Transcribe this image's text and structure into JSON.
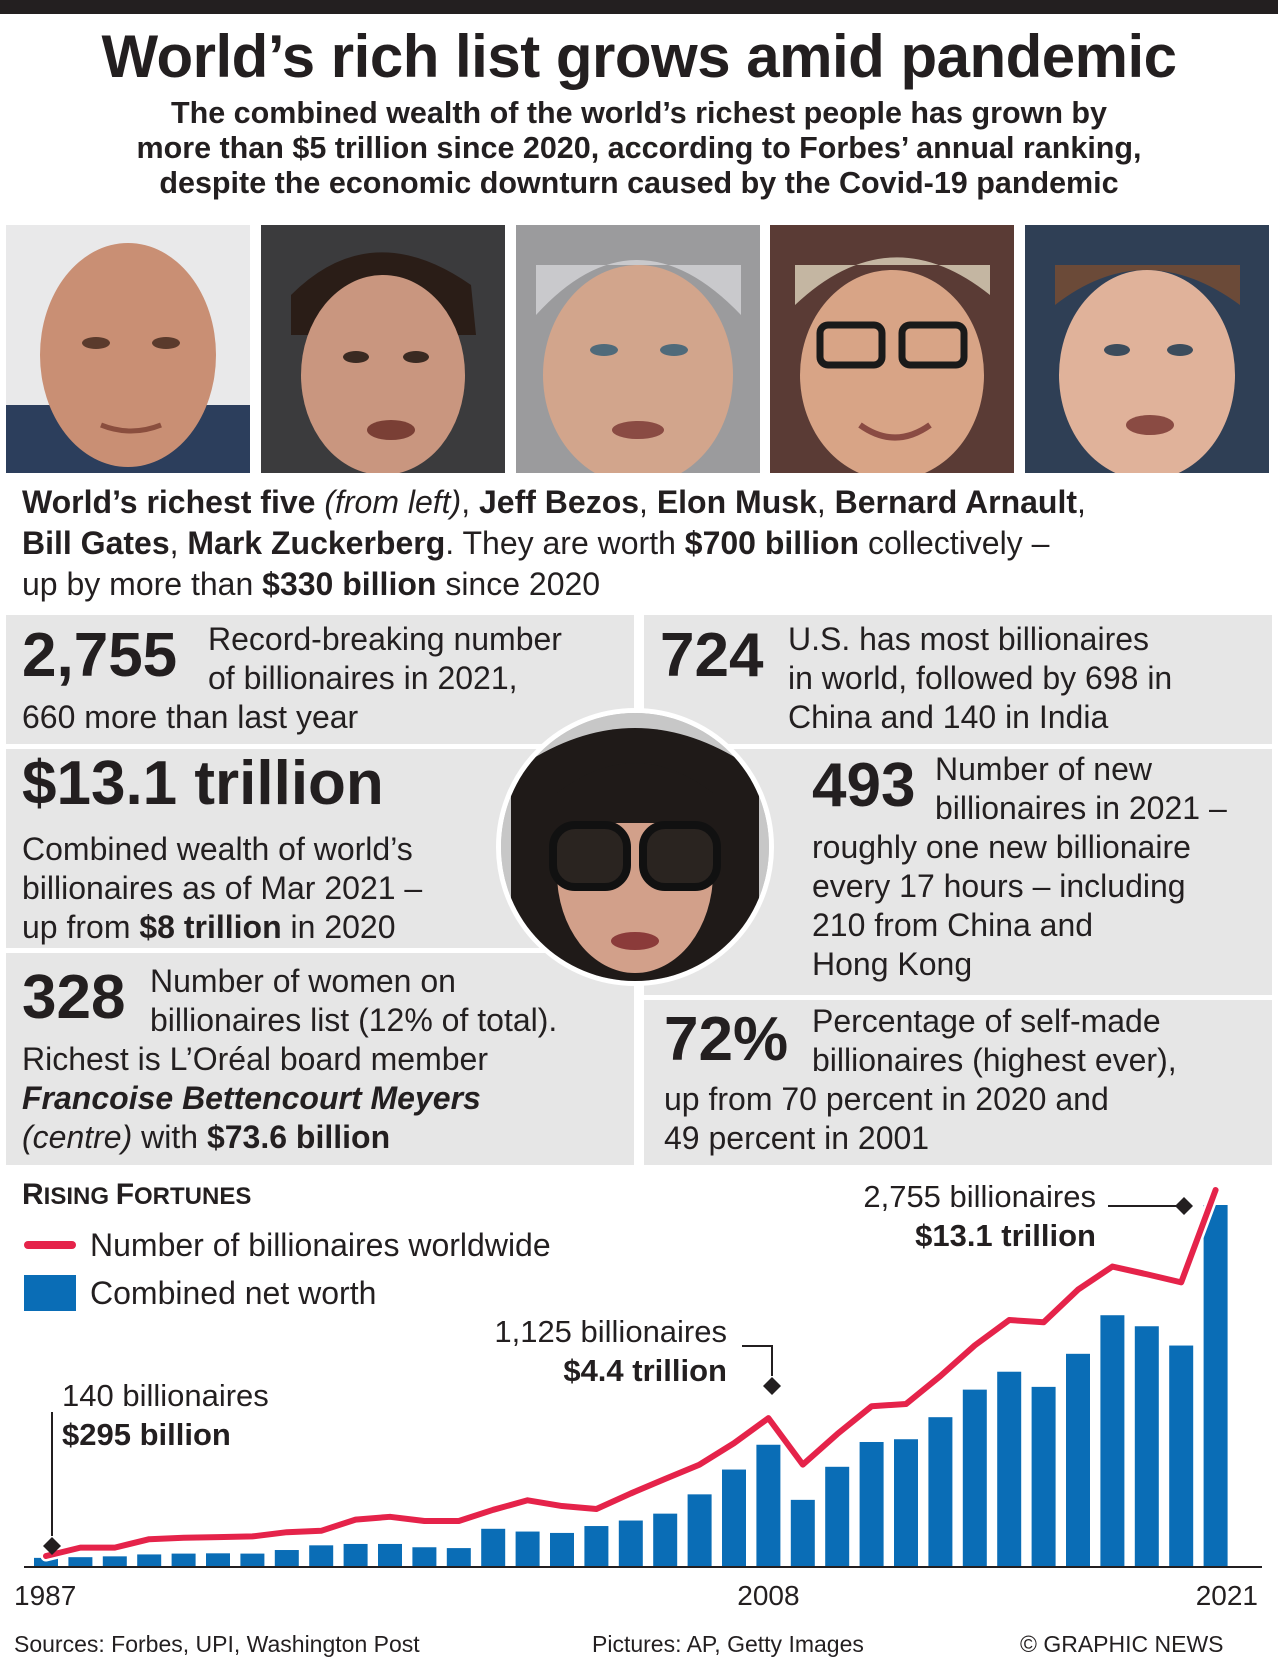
{
  "header": {
    "title": "World’s rich list grows amid pandemic",
    "subtitle_lines": [
      "The combined wealth of the world’s richest people has grown by",
      "more than $5 trillion since 2020, according to Forbes’ annual ranking,",
      "despite the economic downturn caused by the Covid-19 pandemic"
    ]
  },
  "photos": [
    "Jeff Bezos",
    "Elon Musk",
    "Bernard Arnault",
    "Bill Gates",
    "Mark Zuckerberg"
  ],
  "caption": {
    "lead": "World’s richest five",
    "lead_italic": "(from left)",
    "n1": "Jeff Bezos",
    "n2": "Elon Musk",
    "n3": "Bernard Arnault",
    "n4": "Bill Gates",
    "n5": "Mark Zuckerberg",
    "worth_text": ". They are worth",
    "worth_value": "$700 billion",
    "worth_suffix": "collectively –",
    "up_text": "up by more than",
    "up_value": "$330 billion",
    "up_suffix": "since 2020"
  },
  "stats": {
    "billionaires": {
      "value": "2,755",
      "l1": "Record-breaking number",
      "l2": "of billionaires in 2021,",
      "l3": "660 more than last year"
    },
    "us": {
      "value": "724",
      "l1": "U.S. has most billionaires",
      "l2": "in world, followed by 698 in",
      "l3": "China and 140 in India"
    },
    "wealth": {
      "value": "$13.1 trillion",
      "l1": "Combined wealth of world’s",
      "l2": "billionaires as of Mar 2021 –",
      "l3a": "up from",
      "l3b": "$8 trillion",
      "l3c": "in 2020"
    },
    "new": {
      "value": "493",
      "l1": "Number of new",
      "l2": "billionaires in 2021 –",
      "l3": "roughly one new billionaire",
      "l4": "every 17 hours – including",
      "l5": "210 from China and",
      "l6": "Hong Kong"
    },
    "women": {
      "value": "328",
      "l1": "Number of women on",
      "l2": "billionaires list (12% of total).",
      "l3": "Richest is L’Oréal board member",
      "l4": "Francoise Bettencourt Meyers",
      "l5a": "(centre)",
      "l5b": "with",
      "l5c": "$73.6 billion"
    },
    "selfmade": {
      "value": "72%",
      "l1": "Percentage of self-made",
      "l2": "billionaires (highest ever),",
      "l3": "up from 70 percent in 2020 and",
      "l4": "49 percent in 2001"
    }
  },
  "chart_data": {
    "type": "bar",
    "title_first": "R",
    "title_rest1": "ISING ",
    "title_first2": "F",
    "title_rest2": "ORTUNES",
    "legend": {
      "line": "Number of billionaires worldwide",
      "bar": "Combined net worth"
    },
    "colors": {
      "line": "#e5234a",
      "bar": "#0a6db6"
    },
    "x": [
      1987,
      1988,
      1989,
      1990,
      1991,
      1992,
      1993,
      1994,
      1995,
      1996,
      1997,
      1998,
      1999,
      2000,
      2001,
      2002,
      2003,
      2004,
      2005,
      2006,
      2007,
      2008,
      2009,
      2010,
      2011,
      2012,
      2013,
      2014,
      2015,
      2016,
      2017,
      2018,
      2019,
      2020,
      2021
    ],
    "x_tick_labels": [
      "1987",
      "2008",
      "2021"
    ],
    "series": [
      {
        "name": "Combined net worth",
        "unit": "$ trillion",
        "values": [
          0.295,
          0.32,
          0.35,
          0.42,
          0.45,
          0.46,
          0.45,
          0.58,
          0.75,
          0.8,
          0.8,
          0.68,
          0.65,
          1.35,
          1.25,
          1.2,
          1.45,
          1.65,
          1.9,
          2.6,
          3.5,
          4.4,
          2.4,
          3.6,
          4.5,
          4.6,
          5.4,
          6.4,
          7.05,
          6.5,
          7.7,
          9.1,
          8.7,
          8.0,
          13.1
        ]
      },
      {
        "name": "Number of billionaires worldwide",
        "values": [
          140,
          200,
          200,
          260,
          270,
          275,
          280,
          310,
          320,
          400,
          420,
          390,
          390,
          470,
          538,
          497,
          476,
          587,
          691,
          793,
          946,
          1125,
          793,
          1011,
          1210,
          1226,
          1426,
          1645,
          1826,
          1810,
          2043,
          2208,
          2153,
          2095,
          2755
        ]
      }
    ],
    "annotations": [
      {
        "l1": "140 billionaires",
        "l2": "$295 billion"
      },
      {
        "l1": "1,125 billionaires",
        "l2": "$4.4 trillion"
      },
      {
        "l1": "2,755 billionaires",
        "l2": "$13.1 trillion"
      }
    ]
  },
  "footer": {
    "sources": "Sources: Forbes, UPI, Washington Post",
    "pictures": "Pictures: AP, Getty Images",
    "credit": "© GRAPHIC NEWS"
  }
}
